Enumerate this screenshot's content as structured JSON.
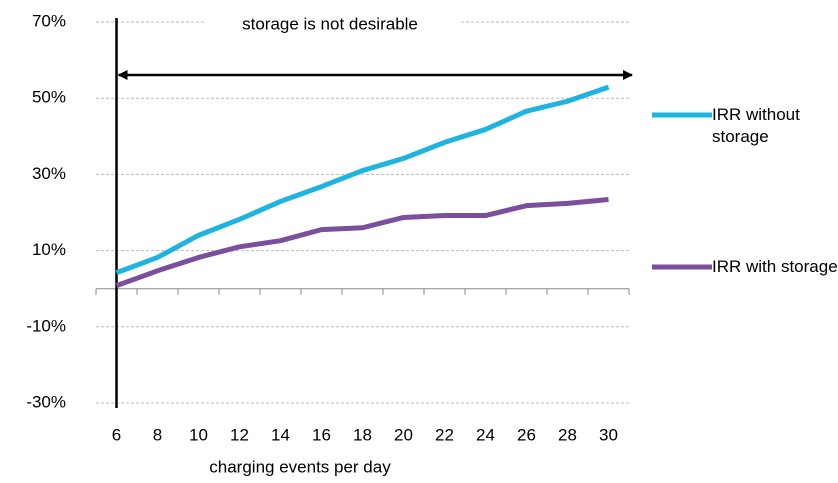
{
  "chart_data": {
    "type": "line",
    "annotation": "storage is not desirable",
    "x_label": "charging events per day",
    "categories": [
      "6",
      "8",
      "10",
      "12",
      "14",
      "16",
      "18",
      "20",
      "22",
      "24",
      "26",
      "28",
      "30"
    ],
    "series": [
      {
        "name": "IRR without storage",
        "color": "#1fb3e0",
        "values": [
          4.2,
          8.2,
          14,
          18.2,
          22.9,
          26.8,
          31,
          34.2,
          38.4,
          41.8,
          46.6,
          49.2,
          52.9
        ]
      },
      {
        "name": "IRR with storage",
        "color": "#7b4f9e",
        "values": [
          0.8,
          4.7,
          8.2,
          11,
          12.6,
          15.5,
          16,
          18.7,
          19.2,
          19.2,
          21.8,
          22.4,
          23.4
        ]
      }
    ],
    "ylim": [
      -30,
      70
    ],
    "yticks": [
      {
        "value": 70,
        "label": "70%"
      },
      {
        "value": 50,
        "label": "50%"
      },
      {
        "value": 30,
        "label": "30%"
      },
      {
        "value": 10,
        "label": "10%"
      },
      {
        "value": -10,
        "label": "-10%"
      },
      {
        "value": -30,
        "label": "-30%"
      }
    ],
    "grid": true
  }
}
